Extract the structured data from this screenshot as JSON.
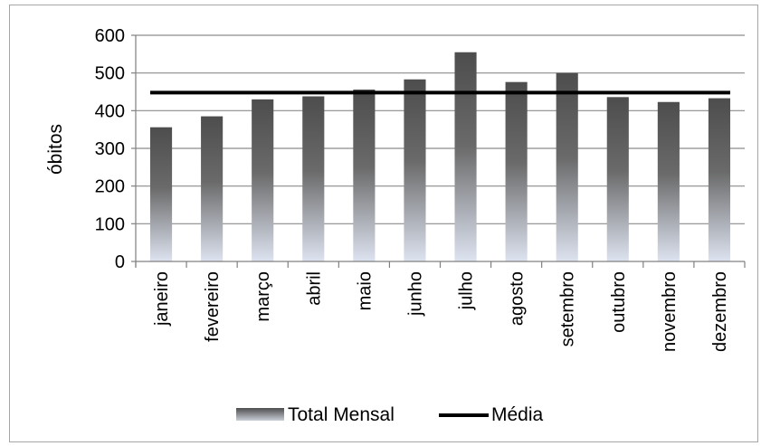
{
  "chart_data": {
    "type": "bar",
    "title": "",
    "xlabel": "",
    "ylabel": "óbitos",
    "ylim": [
      0,
      600
    ],
    "yticks": [
      0,
      100,
      200,
      300,
      400,
      500,
      600
    ],
    "grid": true,
    "legend_position": "bottom",
    "categories": [
      "janeiro",
      "fevereiro",
      "março",
      "abril",
      "maio",
      "junho",
      "julho",
      "agosto",
      "setembro",
      "outubro",
      "novembro",
      "dezembro"
    ],
    "series": [
      {
        "name": "Total Mensal",
        "type": "bar",
        "color_top": "#4d4d4d",
        "color_bottom": "#dde3f0",
        "values": [
          356,
          385,
          430,
          438,
          456,
          483,
          555,
          476,
          500,
          436,
          423,
          433
        ]
      },
      {
        "name": "Média",
        "type": "line",
        "color": "#000000",
        "values": [
          448,
          448,
          448,
          448,
          448,
          448,
          448,
          448,
          448,
          448,
          448,
          448
        ]
      }
    ]
  }
}
